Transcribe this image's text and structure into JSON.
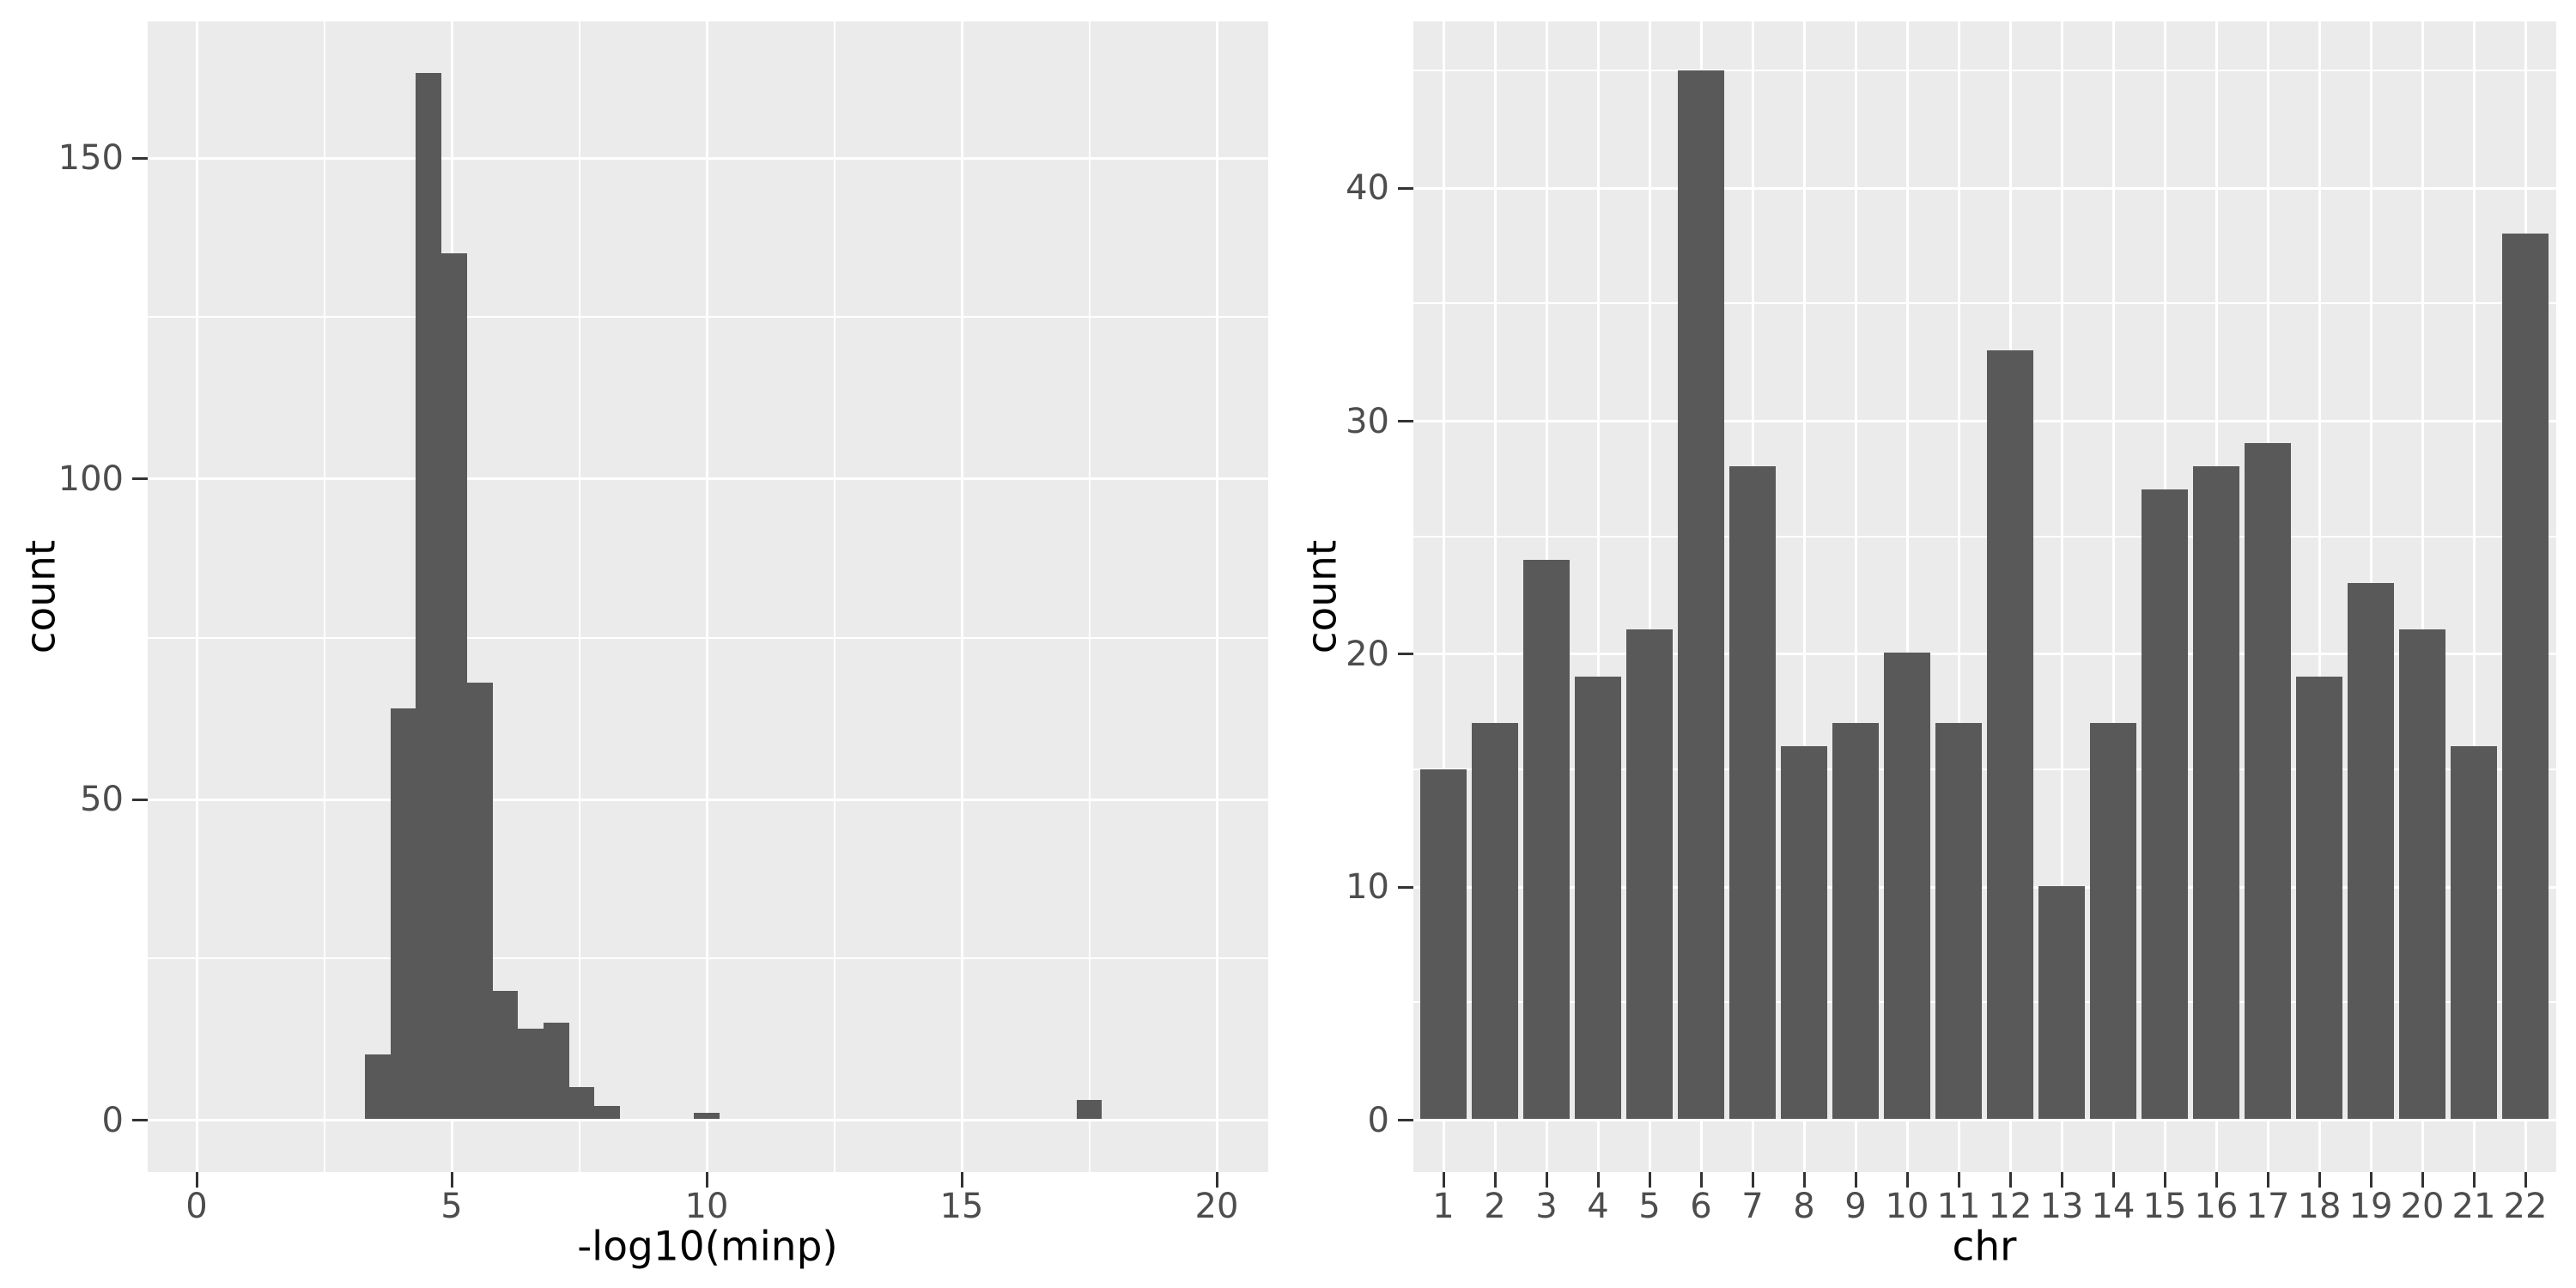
{
  "style": {
    "background": "#FFFFFF",
    "panel_bg": "#EBEBEB",
    "bar_fill": "#595959",
    "grid_major": "#FFFFFF",
    "grid_minor": "#FFFFFF",
    "tick_mark_color": "#333333",
    "tick_label_color": "#4D4D4D",
    "axis_title_color": "#000000"
  },
  "chart_data": [
    {
      "type": "bar",
      "subtype": "histogram",
      "title": "",
      "xlabel": "-log10(minp)",
      "ylabel": "count",
      "xlim": [
        -1,
        21
      ],
      "ylim": [
        -8.6,
        171.2
      ],
      "grid": true,
      "legend": "none",
      "x_ticks": [
        0,
        5,
        10,
        15,
        20
      ],
      "x_tick_labels": [
        "0",
        "5",
        "10",
        "15",
        "20"
      ],
      "x_minor_ticks": [
        2.5,
        7.5,
        12.5,
        17.5
      ],
      "y_ticks": [
        0,
        50,
        100,
        150
      ],
      "y_tick_labels": [
        "0",
        "50",
        "100",
        "150"
      ],
      "y_minor_ticks": [
        25,
        75,
        125
      ],
      "bin_width": 0.5,
      "bins": [
        {
          "x0": 3.3,
          "x1": 3.8,
          "count": 10
        },
        {
          "x0": 3.8,
          "x1": 4.3,
          "count": 64
        },
        {
          "x0": 4.3,
          "x1": 4.8,
          "count": 163
        },
        {
          "x0": 4.8,
          "x1": 5.3,
          "count": 135
        },
        {
          "x0": 5.3,
          "x1": 5.8,
          "count": 68
        },
        {
          "x0": 5.8,
          "x1": 6.3,
          "count": 20
        },
        {
          "x0": 6.3,
          "x1": 6.8,
          "count": 14
        },
        {
          "x0": 6.8,
          "x1": 7.3,
          "count": 15
        },
        {
          "x0": 7.3,
          "x1": 7.8,
          "count": 5
        },
        {
          "x0": 7.8,
          "x1": 8.3,
          "count": 2
        },
        {
          "x0": 9.75,
          "x1": 10.25,
          "count": 1
        },
        {
          "x0": 17.25,
          "x1": 17.75,
          "count": 3
        }
      ]
    },
    {
      "type": "bar",
      "title": "",
      "xlabel": "chr",
      "ylabel": "count",
      "ylim": [
        -2.25,
        47.25
      ],
      "grid": true,
      "legend": "none",
      "categories": [
        "1",
        "2",
        "3",
        "4",
        "5",
        "6",
        "7",
        "8",
        "9",
        "10",
        "11",
        "12",
        "13",
        "14",
        "15",
        "16",
        "17",
        "18",
        "19",
        "20",
        "21",
        "22"
      ],
      "values": [
        15,
        17,
        24,
        19,
        21,
        45,
        28,
        16,
        17,
        20,
        17,
        33,
        10,
        17,
        27,
        28,
        29,
        19,
        23,
        21,
        16,
        38
      ],
      "y_ticks": [
        0,
        10,
        20,
        30,
        40
      ],
      "y_tick_labels": [
        "0",
        "10",
        "20",
        "30",
        "40"
      ],
      "y_minor_ticks": [
        5,
        15,
        25,
        35,
        45
      ]
    }
  ]
}
